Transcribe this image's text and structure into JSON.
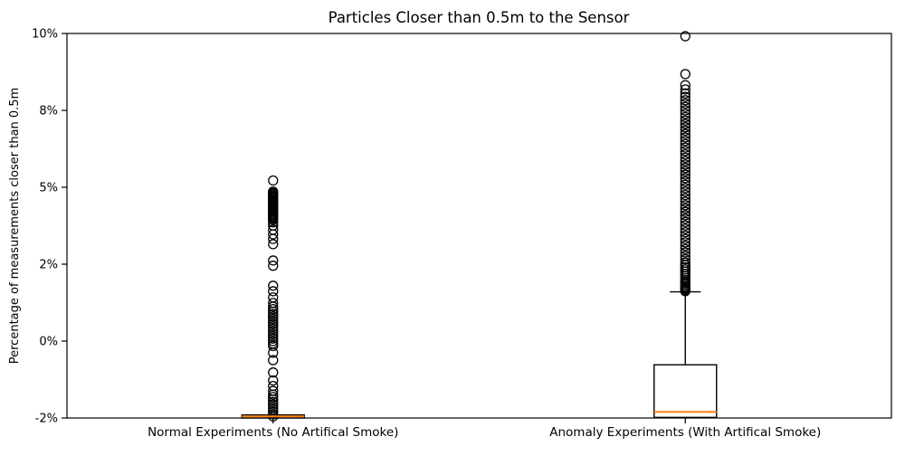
{
  "chart_data": {
    "type": "boxplot",
    "title": "Particles Closer than 0.5m to the Sensor",
    "ylabel": "Percentage of measurements closer than 0.5m",
    "xlabel": "",
    "grid": false,
    "legend": "none",
    "y_axis": {
      "min": -2.5,
      "max": 10,
      "unit": "percent",
      "ticks": [
        {
          "value": -2.5,
          "label": "-2%"
        },
        {
          "value": 0,
          "label": "0%"
        },
        {
          "value": 2.5,
          "label": "2%"
        },
        {
          "value": 5,
          "label": "5%"
        },
        {
          "value": 7.5,
          "label": "8%"
        },
        {
          "value": 10,
          "label": "10%"
        }
      ]
    },
    "categories": [
      "Normal Experiments (No Artifical Smoke)",
      "Anomaly Experiments (With Artifical Smoke)"
    ],
    "colors": {
      "box_edge": "#000000",
      "median": "#ff7f0e",
      "flier_edge": "#000000",
      "background": "#ffffff",
      "text": "#000000"
    },
    "series": [
      {
        "name": "Normal Experiments (No Artifical Smoke)",
        "q1": -2.5,
        "median": -2.45,
        "q3": -2.4,
        "whisker_low": null,
        "whisker_high": null,
        "fliers": [
          5.22,
          4.86,
          4.82,
          4.78,
          4.74,
          4.7,
          4.66,
          4.62,
          4.58,
          4.54,
          4.5,
          4.46,
          4.42,
          4.38,
          4.34,
          4.3,
          4.26,
          4.22,
          4.18,
          4.14,
          4.1,
          4.06,
          4.02,
          3.98,
          3.94,
          3.86,
          3.76,
          3.62,
          3.47,
          3.32,
          3.15,
          2.62,
          2.45,
          1.8,
          1.62,
          1.42,
          1.24,
          1.12,
          1.04,
          0.96,
          0.88,
          0.8,
          0.72,
          0.64,
          0.56,
          0.48,
          0.4,
          0.32,
          0.24,
          0.16,
          0.08,
          0.0,
          -0.08,
          -0.16,
          -0.38,
          -0.62,
          -1.02,
          -1.28,
          -1.46,
          -1.62,
          -1.74,
          -1.82,
          -1.9,
          -1.98,
          -2.06,
          -2.14,
          -2.22,
          -2.3,
          -2.38,
          -2.45
        ]
      },
      {
        "name": "Anomaly Experiments (With Artifical Smoke)",
        "q1": -2.48,
        "median": -2.3,
        "q3": -0.77,
        "whisker_low": null,
        "whisker_high": 1.6,
        "fliers": [
          9.91,
          8.68,
          8.32,
          8.18,
          8.05,
          7.94,
          7.83,
          7.72,
          7.61,
          7.5,
          7.39,
          7.28,
          7.17,
          7.06,
          6.95,
          6.84,
          6.73,
          6.62,
          6.51,
          6.4,
          6.29,
          6.18,
          6.07,
          5.96,
          5.85,
          5.74,
          5.63,
          5.52,
          5.41,
          5.3,
          5.19,
          5.08,
          4.97,
          4.86,
          4.75,
          4.64,
          4.53,
          4.42,
          4.31,
          4.2,
          4.09,
          3.98,
          3.87,
          3.76,
          3.65,
          3.54,
          3.43,
          3.32,
          3.21,
          3.1,
          2.99,
          2.88,
          2.77,
          2.66,
          2.55,
          2.47,
          2.4,
          2.33,
          2.26,
          2.19,
          2.12,
          2.05,
          1.98,
          1.93,
          1.88,
          1.83,
          1.78,
          1.74,
          1.7,
          1.66,
          1.62
        ]
      }
    ]
  }
}
